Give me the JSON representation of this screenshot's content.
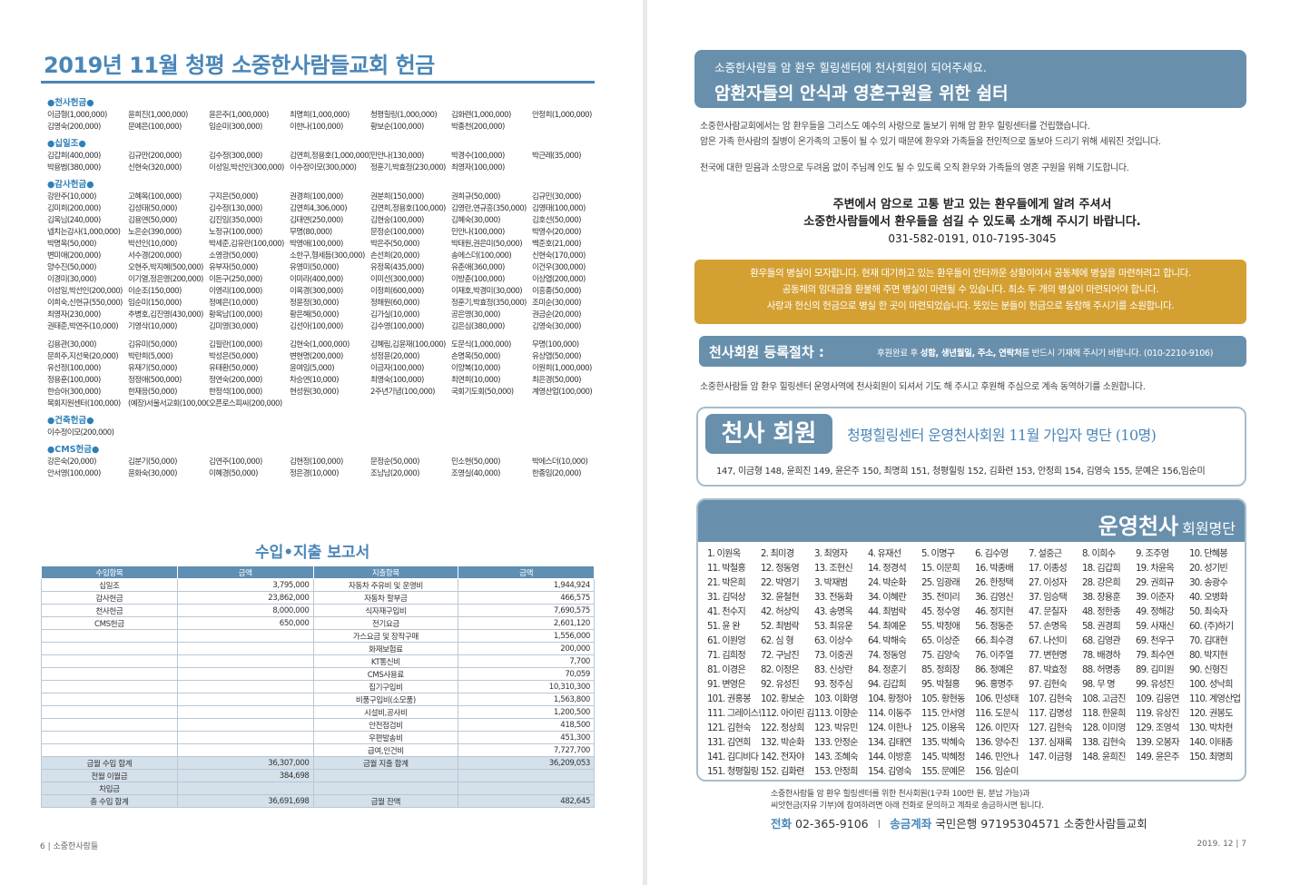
{
  "left": {
    "title": "2019년 11월 청평 소중한사람들교회 헌금",
    "sections": [
      {
        "name": "●천사헌금●",
        "rows": [
          [
            "이금형(1,000,000)",
            "윤희진(1,000,000)",
            "윤은주(1,000,000)",
            "최명희(1,000,000)",
            "청평힐링(1,000,000)",
            "김화련(1,000,000)",
            "안정희(1,000,000)"
          ],
          [
            "김영숙(200,000)",
            "문예은(100,000)",
            "임순미(300,000)",
            "이한나(100,000)",
            "황보순(100,000)",
            "박종천(200,000)",
            ""
          ]
        ]
      },
      {
        "name": "●십일조●",
        "rows": [
          [
            "김갑희(400,000)",
            "김규만(200,000)",
            "김수정(300,000)",
            "김연희,정용호(1,000,000)",
            "민안나(130,000)",
            "박경수(100,000)",
            "박근례(35,000)"
          ],
          [
            "박용범(380,000)",
            "신현숙(320,000)",
            "이성일,박선인(300,000)",
            "이수정이모(300,000)",
            "정훈기,박효정(230,000)",
            "최영자(100,000)",
            ""
          ]
        ]
      },
      {
        "name": "●감사헌금●",
        "rows": [
          [
            "강완주(10,000)",
            "고혜옥(100,000)",
            "구지은(50,000)",
            "권경희(100,000)",
            "권분희(150,000)",
            "권희규(50,000)",
            "김규민(30,000)"
          ],
          [
            "김미희(200,000)",
            "김성태(50,000)",
            "김수정(130,000)",
            "김연희4,306,000)",
            "김연희,정용호(100,000)",
            "김영란,연규흥(350,000)",
            "김영태(100,000)"
          ],
          [
            "김옥님(240,000)",
            "김용연(50,000)",
            "김진임(350,000)",
            "김태연(250,000)",
            "김현숭(100,000)",
            "김혜숙(30,000)",
            "김호선(50,000)"
          ],
          [
            "넵치는감사(1,000,000)",
            "노은순(390,000)",
            "노정규(100,000)",
            "무명(80,000)",
            "문정순(100,000)",
            "민안나(100,000)",
            "박영수(20,000)"
          ],
          [
            "박명옥(50,000)",
            "박선인(10,000)",
            "박세준,김유란(100,000)",
            "박영애(100,000)",
            "박은주(50,000)",
            "박태원,권은미(50,000)",
            "백준호(21,000)"
          ],
          [
            "변미애(200,000)",
            "서수경(200,000)",
            "소영광(50,000)",
            "소한구,형세듬(300,000)",
            "손선희(20,000)",
            "송에스더(100,000)",
            "신현숙(170,000)"
          ],
          [
            "양수진(50,000)",
            "오현주,박지혜(500,000)",
            "유부자(50,000)",
            "유영미(50,000)",
            "유정옥(435,000)",
            "유춘애(360,000)",
            "이건우(300,000)"
          ],
          [
            "이경미(30,000)",
            "이기열,정은영(200,000)",
            "이돈구(250,000)",
            "이미라(400,000)",
            "이미선(300,000)",
            "이방춘(100,000)",
            "이상엽(200,000)"
          ],
          [
            "이성일,박선인(200,000)",
            "이순조(150,000)",
            "이영리(100,000)",
            "이옥경(300,000)",
            "이정희(600,000)",
            "이재호,박경미(30,000)",
            "이흥종(50,000)"
          ],
          [
            "이희숙,신현규(550,000)",
            "임순미(150,000)",
            "정예은(10,000)",
            "정윤정(30,000)",
            "정해원(60,000)",
            "정훈기,박효정(350,000)",
            "조미순(30,000)"
          ],
          [
            "최영자(230,000)",
            "추병호,김진영(430,000)",
            "황옥남(100,000)",
            "황은혜(50,000)",
            "김가실(10,000)",
            "공은영(30,000)",
            "권금순(20,000)"
          ],
          [
            "권태준,박연주(10,000)",
            "기영삭(10,000)",
            "김미영(30,000)",
            "김선아(100,000)",
            "김수영(100,000)",
            "김은심(380,000)",
            "김영숙(30,000)"
          ]
        ]
      },
      {
        "name": "",
        "rows": [
          [
            "김용관(30,000)",
            "김유미(50,000)",
            "김필란(100,000)",
            "김현숙(1,000,000)",
            "김혜림,김윤재(100,000)",
            "도문식(1,000,000)",
            "무명(100,000)"
          ],
          [
            "문희주,지선욱(20,000)",
            "박란희(5,000)",
            "박성은(50,000)",
            "변현명(200,000)",
            "성정윤(20,000)",
            "손명옥(50,000)",
            "유상엽(50,000)"
          ],
          [
            "유선정(100,000)",
            "유재기(50,000)",
            "유태환(50,000)",
            "윤여임(5,000)",
            "이금자(100,000)",
            "이양복(10,000)",
            "이원희(1,000,000)"
          ],
          [
            "정용훈(100,000)",
            "정정애(500,000)",
            "정연숙(200,000)",
            "차승연(10,000)",
            "최영숙(100,000)",
            "최연희(10,000)",
            "최은경(50,000)"
          ],
          [
            "한승아(300,000)",
            "한재응(50,000)",
            "한정석(100,000)",
            "현성원(30,000)",
            "2주년기념(100,000)",
            "국회기도회(50,000)",
            "계영산업(100,000)"
          ],
          [
            "목회지원센터(100,000)",
            "(예장)서울서교회(100,000)",
            "오픈로스피씨(200,000)",
            "",
            "",
            "",
            ""
          ]
        ]
      },
      {
        "name": "●건축헌금●",
        "rows": [
          [
            "이수정이모(200,000)",
            "",
            "",
            "",
            "",
            "",
            ""
          ]
        ]
      },
      {
        "name": "●CMS헌금●",
        "rows": [
          [
            "강은숙(20,000)",
            "김분기(50,000)",
            "김연주(100,000)",
            "김현정(100,000)",
            "문정순(50,000)",
            "민소현(50,000)",
            "박에스더(10,000)"
          ],
          [
            "안서영(100,000)",
            "윤화숙(30,000)",
            "이혜경(50,000)",
            "정은경(10,000)",
            "조남남(20,000)",
            "조영실(40,000)",
            "한종임(20,000)"
          ]
        ]
      }
    ],
    "report": {
      "title": "수입•지출 보고서",
      "headers": [
        "수입항목",
        "금액",
        "지출항목",
        "금액"
      ],
      "rows": [
        [
          "십일조",
          "3,795,000",
          "자동차 주유비 및 운영비",
          "1,944,924"
        ],
        [
          "감사헌금",
          "23,862,000",
          "자동차 할부금",
          "466,575"
        ],
        [
          "천사헌금",
          "8,000,000",
          "식자재구입비",
          "7,690,575"
        ],
        [
          "CMS헌금",
          "650,000",
          "전기요금",
          "2,601,120"
        ],
        [
          "",
          "",
          "가스요금 및 장작구매",
          "1,556,000"
        ],
        [
          "",
          "",
          "화재보험료",
          "200,000"
        ],
        [
          "",
          "",
          "KT통신비",
          "7,700"
        ],
        [
          "",
          "",
          "CMS사용료",
          "70,059"
        ],
        [
          "",
          "",
          "집기구입비",
          "10,310,300"
        ],
        [
          "",
          "",
          "비품구입비(소모품)",
          "1,563,800"
        ],
        [
          "",
          "",
          "시설비,공사비",
          "1,200,500"
        ],
        [
          "",
          "",
          "안전점검비",
          "418,500"
        ],
        [
          "",
          "",
          "우편발송비",
          "451,300"
        ],
        [
          "",
          "",
          "급여,인건비",
          "7,727,700"
        ]
      ],
      "totals": [
        [
          "금월 수입 합계",
          "36,307,000",
          "금월 지출 합계",
          "36,209,053"
        ],
        [
          "전월 이월금",
          "384,698",
          "",
          ""
        ],
        [
          "차입금",
          "",
          "",
          ""
        ],
        [
          "총 수입 합계",
          "36,691,698",
          "금월 잔액",
          "482,645"
        ]
      ]
    },
    "folio": "6 | 소중한사람들"
  },
  "right": {
    "banner_sub": "소중한사람들 암 환우 힐링센터에 천사회원이 되어주세요.",
    "banner_main": "암환자들의 안식과 영혼구원을 위한 쉼터",
    "intro": [
      "소중한사람교회에서는 암 환우들을 그리스도 예수의 사랑으로 돌보기 위해 암 환우 힐링센터를 건립했습니다.",
      "암은 가족 한사람의 질병이 온가족의 고통이 될 수 있기 때문에 환우와 가족들을 전인적으로 돌보아 드리기 위해 세워진 것입니다.",
      "천국에 대한 믿음과 소망으로 두려움 없이 주님께 인도 될 수 있도록 오직 환우와 가족들의 영혼 구원을 위해 기도합니다."
    ],
    "ask": [
      "주변에서 암으로 고통 받고 있는 환우들에게 알려 주셔서",
      "소중한사람들에서 환우들을 섬길 수 있도록 소개해 주시기 바랍니다.",
      "031-582-0191, 010-7195-3045"
    ],
    "notice": [
      "환우들의 병실이 모자랍니다. 현재 대기하고 있는 환우들이 안타까운 상황이여서 공동체에 병실을 마련하려고 합니다.",
      "공동체의 임대금을 환불해 주면 병실이 마련될 수 있습니다. 최소 두 개의 병실이 마련되어야 합니다.",
      "사랑과 헌신의 헌금으로 병실 한 곳이 마련되었습니다. 뜻있는 분들이 헌금으로 동참해 주시기를 소원합니다."
    ],
    "register": {
      "title": "천사회원 등록절차 :",
      "t1": "후원완료 후 ",
      "b1": "성함, 생년월일, 주소, 연락처",
      "t2": "를 반드시 기재해 주시기 바랍니다. (010-2210-9106)"
    },
    "register_note": "소중한사람들 암 환우 힐링센터 운영사역에 천사회원이 되셔서 기도 해 주시고 후원해 주심으로 계속 동역하기를 소원합니다.",
    "angel": {
      "badge": "천사 회원",
      "heading": "청평힐링센터 운영천사회원 11월 가입자 명단 (10명)",
      "list": "147, 이금형 148, 윤희진 149, 윤은주 150, 최명희 151, 청평힐링 152, 김화련 153, 안정희 154, 김영숙 155, 문예은 156,임순미"
    },
    "roster": {
      "title_big": "운영천사",
      "title_small": "회원명단",
      "rows": [
        [
          "1. 이원옥",
          "2. 최미경",
          "3. 최영자",
          "4. 유재선",
          "5. 이명구",
          "6. 김수영",
          "7. 설중근",
          "8. 이희수",
          "9. 조주영",
          "10. 단혜봉"
        ],
        [
          "11. 박철홍",
          "12. 정동영",
          "13. 조현신",
          "14. 정경석",
          "15. 이문희",
          "16. 박종배",
          "17. 이종성",
          "18. 김갑희",
          "19. 차윤옥",
          "20. 성기빈"
        ],
        [
          "21. 박은희",
          "22. 박영기",
          "3. 박재범",
          "24. 박순화",
          "25. 임광래",
          "26. 한정택",
          "27. 이성자",
          "28. 강은희",
          "29. 권희규",
          "30. 송광수"
        ],
        [
          "31. 김덕상",
          "32. 윤철현",
          "33. 전동화",
          "34. 이혜란",
          "35. 전미리",
          "36. 김영신",
          "37. 임승택",
          "38. 장용훈",
          "39. 이준자",
          "40. 오병화"
        ],
        [
          "41. 천수지",
          "42. 허상익",
          "43. 송명옥",
          "44. 최범락",
          "45. 정수영",
          "46. 정지현",
          "47. 문칠자",
          "48. 정한종",
          "49. 정해강",
          "50. 최숙자"
        ],
        [
          "51. 윤 완",
          "52. 최범락",
          "53. 최유운",
          "54. 최예운",
          "55. 박정애",
          "56. 정동준",
          "57. 손명옥",
          "58. 권경희",
          "59. 사재신",
          "60. (주)하기"
        ],
        [
          "61. 이원엉",
          "62. 심 형",
          "63. 이상수",
          "64. 박해숙",
          "65. 이상준",
          "66. 최수경",
          "67. 나선미",
          "68. 김영관",
          "69. 천우구",
          "70. 김대현"
        ],
        [
          "71. 김희정",
          "72. 구남진",
          "73. 이중권",
          "74. 정동엉",
          "75. 김양숙",
          "76. 이주열",
          "77. 변현명",
          "78. 배경하",
          "79. 최수연",
          "80. 박지현"
        ],
        [
          "81. 이경은",
          "82. 이정은",
          "83. 신상란",
          "84. 정훈기",
          "85. 정희장",
          "86. 정예은",
          "87. 박효정",
          "88. 허명종",
          "89. 김미원",
          "90. 신형진"
        ],
        [
          "91. 변영은",
          "92. 유성진",
          "93. 정주심",
          "94. 김갑희",
          "95. 박철홍",
          "96. 홍명주",
          "97. 김현숙",
          "98. 무 명",
          "99. 유성진",
          "100. 성낙희"
        ],
        [
          "101. 권홍봉",
          "102. 황보순",
          "103. 이화영",
          "104. 황정아",
          "105. 황현동",
          "106. 민성태",
          "107. 김현숙",
          "108. 고금진",
          "109. 김응연",
          "110. 계영산업"
        ],
        [
          "111. 그레이스한",
          "112. 아이린 김",
          "113. 이향순",
          "114. 이동주",
          "115. 안서영",
          "116. 도문식",
          "117. 김명성",
          "118. 한윤희",
          "119. 유상진",
          "120. 권봉도"
        ],
        [
          "121. 김현숙",
          "122. 정상희",
          "123. 박유민",
          "124. 이한나",
          "125. 이용옥",
          "126. 이민자",
          "127. 김현숙",
          "128. 이미영",
          "129. 조영석",
          "130. 박차현"
        ],
        [
          "131. 김연희",
          "132. 박순화",
          "133. 안정순",
          "134. 김태연",
          "135. 박혜숙",
          "136. 양수진",
          "137. 심재록",
          "138. 김현숙",
          "139. 오봉자",
          "140. 이태종"
        ],
        [
          "141. 김디비다",
          "142. 전자야",
          "143. 조혜숙",
          "144. 이방훈",
          "145. 박혜정",
          "146. 민안나",
          "147. 이금형",
          "148. 윤희진",
          "149. 윤은주",
          "150. 최명희"
        ],
        [
          "151. 청평힐링",
          "152. 김화련",
          "153. 안정희",
          "154. 김영숙",
          "155. 문예은",
          "156. 임순미",
          "",
          "",
          "",
          ""
        ]
      ]
    },
    "footer_lines": [
      "소중한사람들 암 환우 힐링센터를 위한 천사회원(1구좌 100만 원, 분납 가능)과",
      "씨앗헌금(자유 기부)에 참여하려면 아래 전화로 문의하고 계좌로 송금하시면 됩니다."
    ],
    "contact": {
      "phone_label": "전화",
      "phone": "02-365-9106",
      "separator": "I",
      "account_label": "송금계좌",
      "account": "국민은행 97195304571 소중한사람들교회"
    },
    "folio": "2019. 12 | 7"
  },
  "colors": {
    "accent_blue": "#4a86b8",
    "banner_blue": "#6890ad",
    "notice_gold": "#d4a032"
  }
}
